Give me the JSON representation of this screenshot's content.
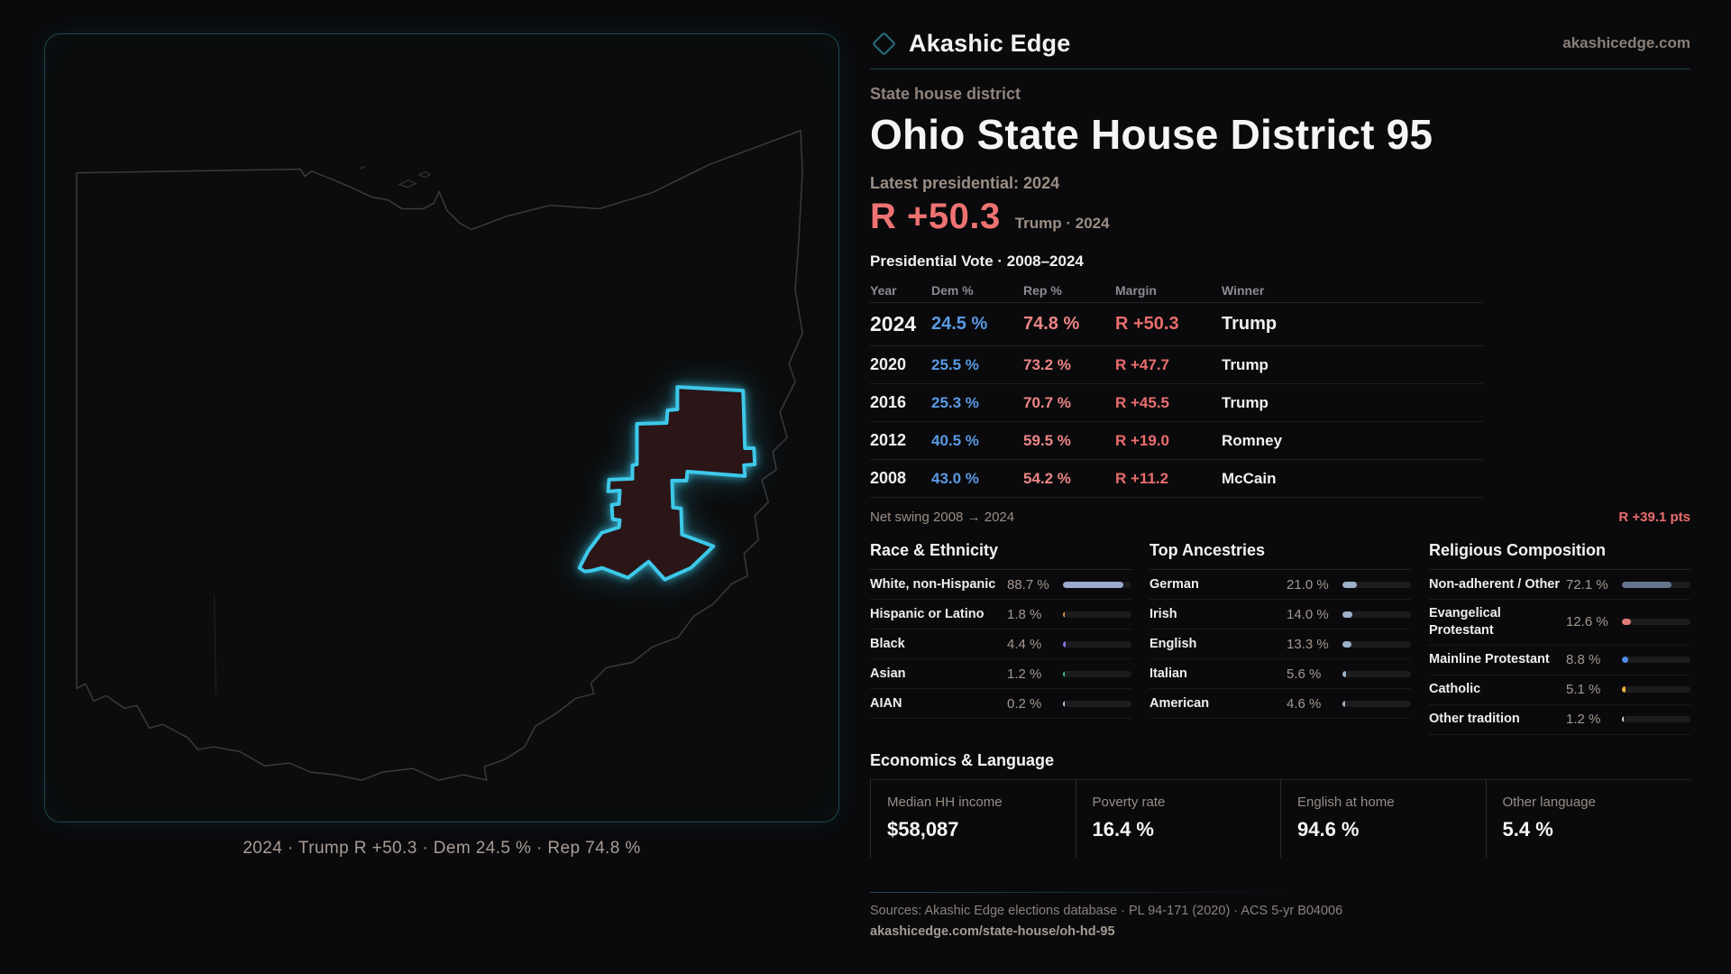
{
  "brand": {
    "name": "Akashic Edge",
    "site": "akashicedge.com"
  },
  "header": {
    "kicker": "State house district",
    "title": "Ohio State House District 95"
  },
  "latest": {
    "label": "Latest presidential: 2024",
    "margin": "R +50.3",
    "note": "Trump · 2024"
  },
  "table": {
    "title": "Presidential Vote · 2008–2024",
    "headers": [
      "Year",
      "Dem %",
      "Rep %",
      "Margin",
      "Winner"
    ],
    "rows": [
      {
        "year": "2024",
        "dem": "24.5 %",
        "rep": "74.8 %",
        "margin": "R +50.3",
        "winner": "Trump"
      },
      {
        "year": "2020",
        "dem": "25.5 %",
        "rep": "73.2 %",
        "margin": "R +47.7",
        "winner": "Trump"
      },
      {
        "year": "2016",
        "dem": "25.3 %",
        "rep": "70.7 %",
        "margin": "R +45.5",
        "winner": "Trump"
      },
      {
        "year": "2012",
        "dem": "40.5 %",
        "rep": "59.5 %",
        "margin": "R +19.0",
        "winner": "Romney"
      },
      {
        "year": "2008",
        "dem": "43.0 %",
        "rep": "54.2 %",
        "margin": "R +11.2",
        "winner": "McCain"
      }
    ]
  },
  "net_swing": {
    "label": "Net swing 2008 → 2024",
    "value": "R +39.1 pts"
  },
  "sections": {
    "race": {
      "title": "Race & Ethnicity",
      "rows": [
        {
          "label": "White, non-Hispanic",
          "value": "88.7 %",
          "pct": 88.7,
          "color": "#9aa9cd"
        },
        {
          "label": "Hispanic or Latino",
          "value": "1.8 %",
          "pct": 1.8,
          "color": "#e0913c"
        },
        {
          "label": "Black",
          "value": "4.4 %",
          "pct": 4.4,
          "color": "#8d72e8"
        },
        {
          "label": "Asian",
          "value": "1.2 %",
          "pct": 1.2,
          "color": "#35c08d"
        },
        {
          "label": "AIAN",
          "value": "0.2 %",
          "pct": 0.2,
          "color": "#c3cbd9"
        }
      ]
    },
    "ancestries": {
      "title": "Top Ancestries",
      "rows": [
        {
          "label": "German",
          "value": "21.0 %",
          "pct": 21.0,
          "color": "#9db1c9"
        },
        {
          "label": "Irish",
          "value": "14.0 %",
          "pct": 14.0,
          "color": "#9db1c9"
        },
        {
          "label": "English",
          "value": "13.3 %",
          "pct": 13.3,
          "color": "#9db1c9"
        },
        {
          "label": "Italian",
          "value": "5.6 %",
          "pct": 5.6,
          "color": "#9db1c9"
        },
        {
          "label": "American",
          "value": "4.6 %",
          "pct": 4.6,
          "color": "#9db1c9"
        }
      ]
    },
    "religion": {
      "title": "Religious Composition",
      "rows": [
        {
          "label": "Non-adherent / Other",
          "value": "72.1 %",
          "pct": 72.1,
          "color": "#64748c"
        },
        {
          "label": "Evangelical Protestant",
          "value": "12.6 %",
          "pct": 12.6,
          "color": "#e07878"
        },
        {
          "label": "Mainline Protestant",
          "value": "8.8 %",
          "pct": 8.8,
          "color": "#4f8fe8"
        },
        {
          "label": "Catholic",
          "value": "5.1 %",
          "pct": 5.1,
          "color": "#eab038"
        },
        {
          "label": "Other tradition",
          "value": "1.2 %",
          "pct": 1.2,
          "color": "#d9d9d9"
        }
      ]
    }
  },
  "economics": {
    "title": "Economics & Language",
    "stats": [
      {
        "label": "Median HH income",
        "value": "$58,087"
      },
      {
        "label": "Poverty rate",
        "value": "16.4 %"
      },
      {
        "label": "English at home",
        "value": "94.6 %"
      },
      {
        "label": "Other language",
        "value": "5.4 %"
      }
    ]
  },
  "map": {
    "caption": "2024 · Trump R +50.3 · Dem 24.5 % · Rep 74.8 %"
  },
  "sources": {
    "line1": "Sources: Akashic Edge elections database · PL 94-171 (2020) · ACS 5-yr B04006",
    "line2": "akashicedge.com/state-house/oh-hd-95"
  },
  "colors": {
    "accent_cyan": "#3dc9ea",
    "headline_red": "#ee7272",
    "margin_red": "#ea6d6d",
    "dem_blue": "#5a9ae4",
    "rep_red": "#ec8585",
    "panel_border_teal": "#2c7c8e"
  }
}
